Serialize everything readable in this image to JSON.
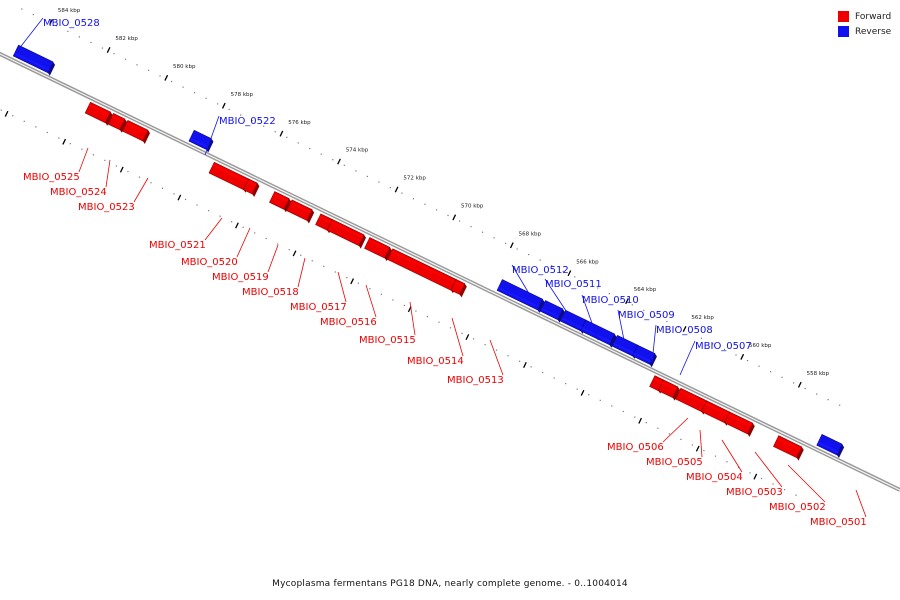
{
  "colors": {
    "forward": "#ee0000",
    "reverse": "#1111ee",
    "backbone": "#888888"
  },
  "legend": [
    {
      "label": "Forward",
      "color": "#ee0000"
    },
    {
      "label": "Reverse",
      "color": "#1111ee"
    }
  ],
  "caption": "Mycoplasma fermentans PG18 DNA, nearly complete genome. - 0..1004014",
  "ruler": {
    "ticks": [
      {
        "label": "584 kbp",
        "kbp": 584
      },
      {
        "label": "582 kbp",
        "kbp": 582
      },
      {
        "label": "580 kbp",
        "kbp": 580
      },
      {
        "label": "578 kbp",
        "kbp": 578
      },
      {
        "label": "576 kbp",
        "kbp": 576
      },
      {
        "label": "574 kbp",
        "kbp": 574
      },
      {
        "label": "572 kbp",
        "kbp": 572
      },
      {
        "label": "570 kbp",
        "kbp": 570
      },
      {
        "label": "568 kbp",
        "kbp": 568
      },
      {
        "label": "566 kbp",
        "kbp": 566
      },
      {
        "label": "564 kbp",
        "kbp": 564
      },
      {
        "label": "562 kbp",
        "kbp": 562
      },
      {
        "label": "560 kbp",
        "kbp": 560
      },
      {
        "label": "558 kbp",
        "kbp": 558
      }
    ]
  },
  "genes": [
    {
      "name": "MBIO_0528",
      "strand": "reverse",
      "start_kbp": 584.6,
      "end_kbp": 583.4
    },
    {
      "name": "MBIO_0525",
      "strand": "forward",
      "start_kbp": 581.8,
      "end_kbp": 581.1
    },
    {
      "name": "MBIO_0524",
      "strand": "forward",
      "start_kbp": 581.0,
      "end_kbp": 580.6
    },
    {
      "name": "MBIO_0523",
      "strand": "forward",
      "start_kbp": 580.5,
      "end_kbp": 579.8
    },
    {
      "name": "MBIO_0522",
      "strand": "reverse",
      "start_kbp": 578.5,
      "end_kbp": 577.9
    },
    {
      "name": "MBIO_0521",
      "strand": "forward",
      "start_kbp": 577.5,
      "end_kbp": 576.3
    },
    {
      "name": "MBIO_0520",
      "strand": "forward",
      "start_kbp": 576.3,
      "end_kbp": 576.0
    },
    {
      "name": "MBIO_0519",
      "strand": "forward",
      "start_kbp": 575.4,
      "end_kbp": 574.9
    },
    {
      "name": "MBIO_0518",
      "strand": "forward",
      "start_kbp": 574.8,
      "end_kbp": 574.1
    },
    {
      "name": "MBIO_0517",
      "strand": "forward",
      "start_kbp": 573.8,
      "end_kbp": 573.4
    },
    {
      "name": "MBIO_0516",
      "strand": "forward",
      "start_kbp": 573.4,
      "end_kbp": 572.3
    },
    {
      "name": "MBIO_0515",
      "strand": "forward",
      "start_kbp": 572.1,
      "end_kbp": 571.4
    },
    {
      "name": "MBIO_0514",
      "strand": "forward",
      "start_kbp": 571.3,
      "end_kbp": 569.1
    },
    {
      "name": "MBIO_0513",
      "strand": "forward",
      "start_kbp": 569.1,
      "end_kbp": 568.8
    },
    {
      "name": "MBIO_0512",
      "strand": "reverse",
      "start_kbp": 567.8,
      "end_kbp": 566.4
    },
    {
      "name": "MBIO_0511",
      "strand": "reverse",
      "start_kbp": 566.3,
      "end_kbp": 565.7
    },
    {
      "name": "MBIO_0510",
      "strand": "reverse",
      "start_kbp": 565.6,
      "end_kbp": 564.9
    },
    {
      "name": "MBIO_0509",
      "strand": "reverse",
      "start_kbp": 564.9,
      "end_kbp": 563.9
    },
    {
      "name": "MBIO_0508",
      "strand": "reverse",
      "start_kbp": 563.8,
      "end_kbp": 563.1
    },
    {
      "name": "MBIO_0507",
      "strand": "reverse",
      "start_kbp": 563.1,
      "end_kbp": 562.5
    },
    {
      "name": "MBIO_0506",
      "strand": "forward",
      "start_kbp": 562.2,
      "end_kbp": 561.9
    },
    {
      "name": "MBIO_0505",
      "strand": "forward",
      "start_kbp": 561.9,
      "end_kbp": 561.4
    },
    {
      "name": "MBIO_0504",
      "strand": "forward",
      "start_kbp": 561.3,
      "end_kbp": 560.4
    },
    {
      "name": "MBIO_0503",
      "strand": "forward",
      "start_kbp": 560.4,
      "end_kbp": 559.6
    },
    {
      "name": "MBIO_0502",
      "strand": "forward",
      "start_kbp": 559.6,
      "end_kbp": 558.8
    },
    {
      "name": "MBIO_0501",
      "strand": "forward",
      "start_kbp": 557.9,
      "end_kbp": 557.1
    },
    {
      "name": "",
      "strand": "reverse",
      "start_kbp": 556.7,
      "end_kbp": 556.0
    }
  ]
}
